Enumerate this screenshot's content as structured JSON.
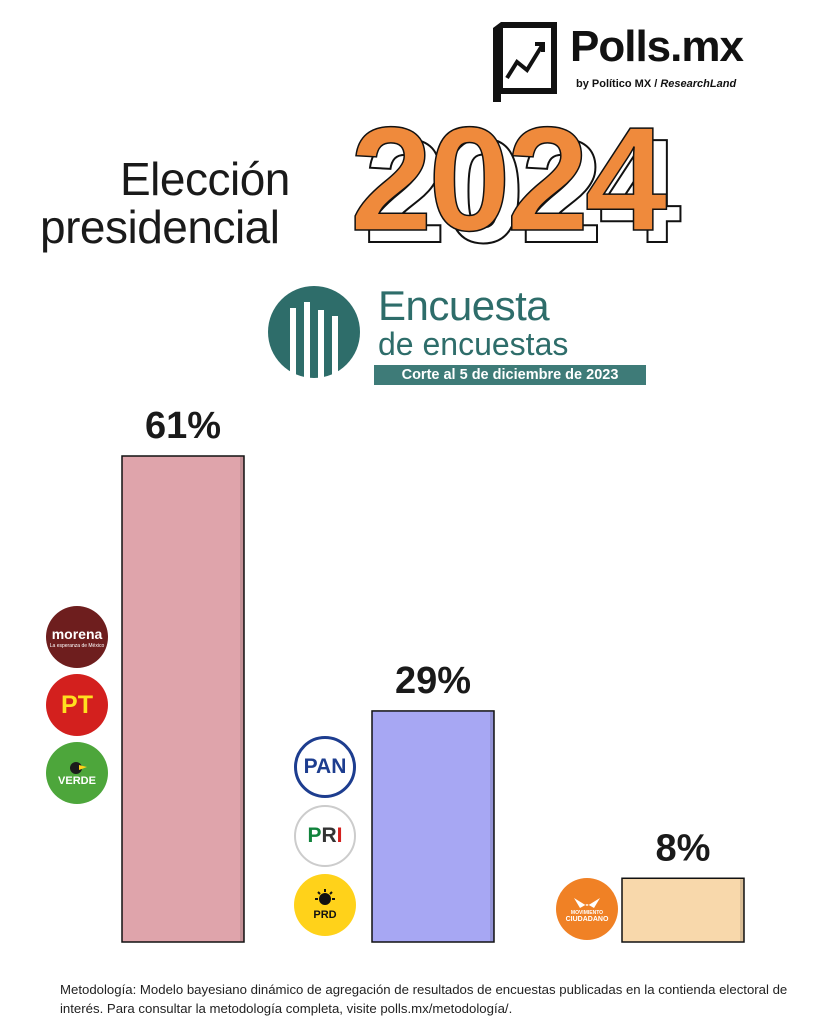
{
  "brand": {
    "name": "Polls.mx",
    "byline_prefix": "by Político MX /",
    "byline_partner": "ResearchLand"
  },
  "title": {
    "line1": "Elección",
    "line2": "presidencial",
    "year": "2024"
  },
  "survey": {
    "title_line1": "Encuesta",
    "title_line2": "de encuestas",
    "date": "Corte al 5 de diciembre de 2023"
  },
  "parties": {
    "morena": "morena",
    "morena_tagline": "La esperanza de México",
    "pt": "PT",
    "verde": "VERDE",
    "pan": "PAN",
    "pri": [
      "P",
      "R",
      "I"
    ],
    "prd": "PRD",
    "mc_line1": "MOVIMIENTO",
    "mc_line2": "CIUDADANO"
  },
  "chart_data": {
    "type": "bar",
    "categories": [
      "Morena-PT-Verde",
      "PAN-PRI-PRD",
      "Movimiento Ciudadano"
    ],
    "values": [
      61,
      29,
      8
    ],
    "labels": [
      "61%",
      "29%",
      "8%"
    ],
    "unit": "%",
    "ylim": [
      0,
      61
    ],
    "colors": [
      "#dfa4ab",
      "#a7a7f3",
      "#f8d8ab"
    ],
    "title": "",
    "xlabel": "",
    "ylabel": ""
  },
  "footer": {
    "methodology": "Metodología: Modelo bayesiano dinámico de agregación de resultados de encuestas publicadas en la contienda electoral de interés. Para consultar la metodología completa, visite polls.mx/metodología/."
  }
}
